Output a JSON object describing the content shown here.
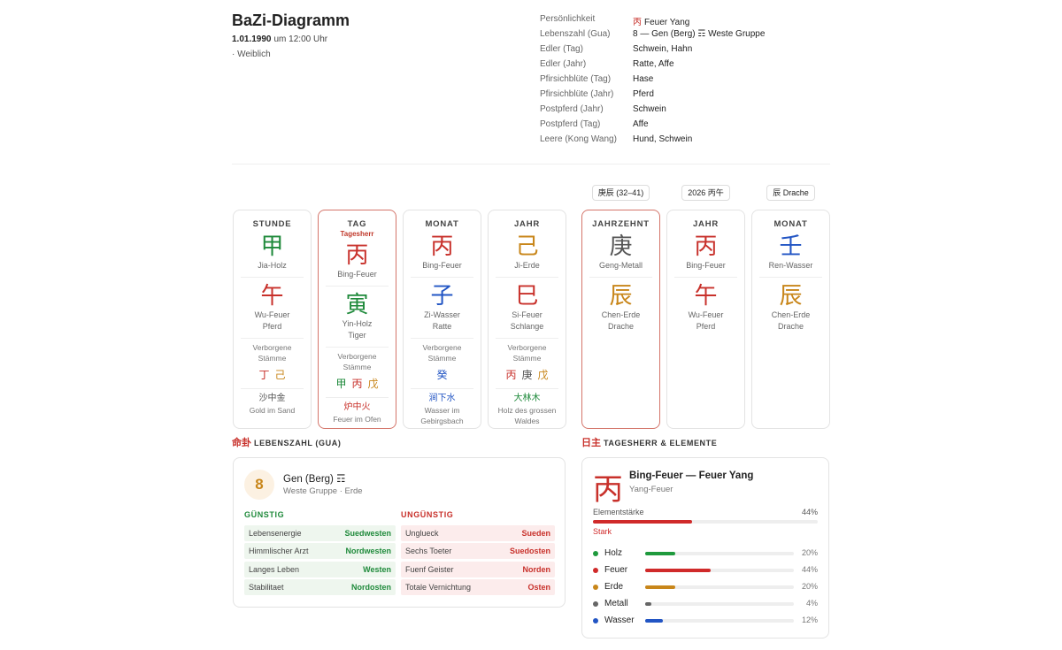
{
  "header": {
    "title": "BaZi-Diagramm",
    "date": "1.01.1990",
    "time": "um 12:00 Uhr",
    "gender": "· Weiblich"
  },
  "profile": [
    {
      "label": "Persönlichkeit",
      "char": "丙",
      "char_color": "#c8312b",
      "value": "Feuer Yang"
    },
    {
      "label": "Lebenszahl (Gua)",
      "value": "8 — Gen (Berg) ☶ Weste Gruppe"
    },
    {
      "label": "Edler (Tag)",
      "value": "Schwein, Hahn"
    },
    {
      "label": "Edler (Jahr)",
      "value": "Ratte, Affe"
    },
    {
      "label": "Pfirsichblüte (Tag)",
      "value": "Hase"
    },
    {
      "label": "Pfirsichblüte (Jahr)",
      "value": "Pferd"
    },
    {
      "label": "Postpferd (Jahr)",
      "value": "Schwein"
    },
    {
      "label": "Postpferd (Tag)",
      "value": "Affe"
    },
    {
      "label": "Leere (Kong Wang)",
      "value": "Hund, Schwein"
    }
  ],
  "luck_tags": [
    "庚辰 (32–41)",
    "2026 丙午",
    "辰 Drache"
  ],
  "pillars": [
    {
      "title": "STUNDE",
      "stem": {
        "char": "甲",
        "name": "Jia-Holz",
        "color": "#1f8a3b"
      },
      "branch": {
        "char": "午",
        "name": "Wu-Feuer",
        "animal": "Pferd",
        "color": "#c8312b"
      },
      "hidden_label": "Verborgene Stämme",
      "hidden": [
        {
          "char": "丁",
          "color": "#c8312b"
        },
        {
          "char": "己",
          "color": "#c8861a"
        }
      ],
      "nayin": {
        "char": "沙中金",
        "text": "Gold im Sand",
        "color": "#555555"
      }
    },
    {
      "title": "TAG",
      "sub": "Tagesherr",
      "highlight": true,
      "stem": {
        "char": "丙",
        "name": "Bing-Feuer",
        "color": "#c8312b"
      },
      "branch": {
        "char": "寅",
        "name": "Yin-Holz",
        "animal": "Tiger",
        "color": "#1f8a3b"
      },
      "hidden_label": "Verborgene Stämme",
      "hidden": [
        {
          "char": "甲",
          "color": "#1f8a3b"
        },
        {
          "char": "丙",
          "color": "#c8312b"
        },
        {
          "char": "戊",
          "color": "#c8861a"
        }
      ],
      "nayin": {
        "char": "炉中火",
        "text": "Feuer im Ofen",
        "color": "#c8312b"
      }
    },
    {
      "title": "MONAT",
      "stem": {
        "char": "丙",
        "name": "Bing-Feuer",
        "color": "#c8312b"
      },
      "branch": {
        "char": "子",
        "name": "Zi-Wasser",
        "animal": "Ratte",
        "color": "#2255c4"
      },
      "hidden_label": "Verborgene Stämme",
      "hidden": [
        {
          "char": "癸",
          "color": "#2255c4"
        }
      ],
      "nayin": {
        "char": "涧下水",
        "text": "Wasser im Gebirgsbach",
        "color": "#2255c4"
      }
    },
    {
      "title": "JAHR",
      "stem": {
        "char": "己",
        "name": "Ji-Erde",
        "color": "#c8861a"
      },
      "branch": {
        "char": "巳",
        "name": "Si-Feuer",
        "animal": "Schlange",
        "color": "#c8312b"
      },
      "hidden_label": "Verborgene Stämme",
      "hidden": [
        {
          "char": "丙",
          "color": "#c8312b"
        },
        {
          "char": "庚",
          "color": "#555555"
        },
        {
          "char": "戊",
          "color": "#c8861a"
        }
      ],
      "nayin": {
        "char": "大林木",
        "text": "Holz des grossen Waldes",
        "color": "#1f8a3b"
      }
    },
    {
      "title": "JAHRZEHNT",
      "highlight": true,
      "stem": {
        "char": "庚",
        "name": "Geng-Metall",
        "color": "#555555"
      },
      "branch": {
        "char": "辰",
        "name": "Chen-Erde",
        "animal": "Drache",
        "color": "#c8861a"
      }
    },
    {
      "title": "JAHR",
      "stem": {
        "char": "丙",
        "name": "Bing-Feuer",
        "color": "#c8312b"
      },
      "branch": {
        "char": "午",
        "name": "Wu-Feuer",
        "animal": "Pferd",
        "color": "#c8312b"
      }
    },
    {
      "title": "MONAT",
      "stem": {
        "char": "壬",
        "name": "Ren-Wasser",
        "color": "#2255c4"
      },
      "branch": {
        "char": "辰",
        "name": "Chen-Erde",
        "animal": "Drache",
        "color": "#c8861a"
      }
    }
  ],
  "gua": {
    "heading_char": "命卦",
    "heading": "LEBENSZAHL (GUA)",
    "number": 8,
    "name": "Gen (Berg) ☶",
    "group": "Weste Gruppe · Erde",
    "favorable": {
      "title": "GÜNSTIG",
      "rows": [
        [
          "Lebensenergie",
          "Suedwesten"
        ],
        [
          "Himmlischer Arzt",
          "Nordwesten"
        ],
        [
          "Langes Leben",
          "Westen"
        ],
        [
          "Stabilitaet",
          "Nordosten"
        ]
      ]
    },
    "unfavorable": {
      "title": "UNGÜNSTIG",
      "rows": [
        [
          "Unglueck",
          "Sueden"
        ],
        [
          "Sechs Toeter",
          "Suedosten"
        ],
        [
          "Fuenf Geister",
          "Norden"
        ],
        [
          "Totale Vernichtung",
          "Osten"
        ]
      ]
    }
  },
  "day_master": {
    "heading_char": "日主",
    "heading": "TAGESHERR & ELEMENTE",
    "char": "丙",
    "title": "Bing-Feuer — Feuer Yang",
    "subtitle": "Yang-Feuer",
    "strength": {
      "label": "Elementstärke",
      "value": 44,
      "value_label": "44%",
      "level": "Stark",
      "color": "#d02a2a"
    },
    "elements": [
      {
        "name": "Holz",
        "value": 20,
        "value_label": "20%",
        "color": "#1f9a3d"
      },
      {
        "name": "Feuer",
        "value": 44,
        "value_label": "44%",
        "color": "#d02a2a"
      },
      {
        "name": "Erde",
        "value": 20,
        "value_label": "20%",
        "color": "#c8861a"
      },
      {
        "name": "Metall",
        "value": 4,
        "value_label": "4%",
        "color": "#666666"
      },
      {
        "name": "Wasser",
        "value": 12,
        "value_label": "12%",
        "color": "#2255c4"
      }
    ]
  }
}
